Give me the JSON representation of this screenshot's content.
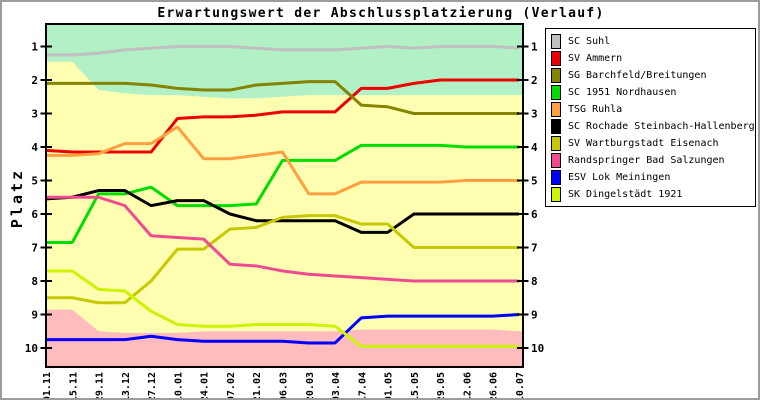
{
  "window": {
    "background": "#ffffff",
    "frame_color": "#9c9c9c"
  },
  "chart_data": {
    "type": "line",
    "title": "Erwartungswert der Abschlussplatzierung (Verlauf)",
    "ylabel": "Platz",
    "y_inverted": true,
    "ylim": [
      0.33,
      10.6
    ],
    "y_ticks": [
      "1",
      "2",
      "3",
      "4",
      "5",
      "6",
      "7",
      "8",
      "9",
      "10"
    ],
    "grid": false,
    "legend_position": "outside-top-right",
    "x_tick_labels": [
      "01.11",
      "15.11",
      "29.11",
      "13.12",
      "27.12",
      "10.01",
      "24.01",
      "07.02",
      "21.02",
      "06.03",
      "20.03",
      "03.04",
      "17.04",
      "01.05",
      "15.05",
      "29.05",
      "12.06",
      "26.06",
      "10.07"
    ],
    "series": [
      {
        "name": "SC Suhl",
        "color": "#c0c0c0",
        "values": [
          1.25,
          1.25,
          1.2,
          1.1,
          1.05,
          1.0,
          1.0,
          1.0,
          1.05,
          1.1,
          1.1,
          1.1,
          1.05,
          1.0,
          1.05,
          1.0,
          1.0,
          1.0,
          1.05
        ]
      },
      {
        "name": "SV Ammern",
        "color": "#ee0000",
        "values": [
          4.1,
          4.15,
          4.15,
          4.15,
          4.15,
          3.15,
          3.1,
          3.1,
          3.05,
          2.95,
          2.95,
          2.95,
          2.25,
          2.25,
          2.1,
          2.0,
          2.0,
          2.0,
          2.0
        ]
      },
      {
        "name": "SG Barchfeld/Breitungen",
        "color": "#848400",
        "values": [
          2.1,
          2.1,
          2.1,
          2.1,
          2.15,
          2.25,
          2.3,
          2.3,
          2.15,
          2.1,
          2.05,
          2.05,
          2.75,
          2.8,
          3.0,
          3.0,
          3.0,
          3.0,
          3.0
        ]
      },
      {
        "name": "SC 1951 Nordhausen",
        "color": "#00dd00",
        "values": [
          6.85,
          6.85,
          5.4,
          5.4,
          5.2,
          5.75,
          5.75,
          5.75,
          5.7,
          4.4,
          4.4,
          4.4,
          3.95,
          3.95,
          3.95,
          3.95,
          4.0,
          4.0,
          4.0
        ]
      },
      {
        "name": "TSG Ruhla",
        "color": "#ff9f40",
        "values": [
          4.25,
          4.25,
          4.2,
          3.9,
          3.9,
          3.4,
          4.35,
          4.35,
          4.25,
          4.15,
          5.4,
          5.4,
          5.05,
          5.05,
          5.05,
          5.05,
          5.0,
          5.0,
          5.0
        ]
      },
      {
        "name": "SC Rochade Steinbach-Hallenberg",
        "color": "#000000",
        "values": [
          5.55,
          5.5,
          5.3,
          5.3,
          5.75,
          5.6,
          5.6,
          6.0,
          6.2,
          6.2,
          6.2,
          6.2,
          6.55,
          6.55,
          6.0,
          6.0,
          6.0,
          6.0,
          6.0
        ]
      },
      {
        "name": "SV Wartburgstadt Eisenach",
        "color": "#c8c800",
        "values": [
          8.5,
          8.5,
          8.65,
          8.65,
          8.0,
          7.05,
          7.05,
          6.45,
          6.4,
          6.1,
          6.05,
          6.05,
          6.3,
          6.3,
          7.0,
          7.0,
          7.0,
          7.0,
          7.0
        ]
      },
      {
        "name": "Randspringer Bad Salzungen",
        "color": "#f24a90",
        "values": [
          5.5,
          5.5,
          5.5,
          5.75,
          6.65,
          6.7,
          6.75,
          7.5,
          7.55,
          7.7,
          7.8,
          7.85,
          7.9,
          7.95,
          8.0,
          8.0,
          8.0,
          8.0,
          8.0
        ]
      },
      {
        "name": "ESV Lok Meiningen",
        "color": "#0000ff",
        "values": [
          9.75,
          9.75,
          9.75,
          9.75,
          9.65,
          9.75,
          9.8,
          9.8,
          9.8,
          9.8,
          9.85,
          9.85,
          9.1,
          9.05,
          9.05,
          9.05,
          9.05,
          9.05,
          9.0
        ]
      },
      {
        "name": "SK Dingelstädt 1921",
        "color": "#ccf400",
        "values": [
          7.7,
          7.7,
          8.25,
          8.3,
          8.9,
          9.3,
          9.35,
          9.35,
          9.3,
          9.3,
          9.3,
          9.35,
          9.95,
          9.95,
          9.95,
          9.95,
          9.95,
          9.95,
          9.95
        ]
      }
    ],
    "zones": {
      "promotion": {
        "color": "#b2f0c6",
        "from": "top",
        "boundary": [
          1.45,
          1.45,
          2.3,
          2.4,
          2.45,
          2.45,
          2.5,
          2.55,
          2.55,
          2.5,
          2.45,
          2.45,
          2.45,
          2.45,
          2.45,
          2.45,
          2.45,
          2.45,
          2.45
        ]
      },
      "midfield": {
        "color": "#ffffb2"
      },
      "relegation": {
        "color": "#ffbcbc",
        "from": "bottom",
        "boundary": [
          8.85,
          8.85,
          9.5,
          9.55,
          9.55,
          9.55,
          9.5,
          9.5,
          9.5,
          9.5,
          9.5,
          9.5,
          9.45,
          9.45,
          9.45,
          9.45,
          9.45,
          9.45,
          9.5
        ]
      }
    }
  }
}
